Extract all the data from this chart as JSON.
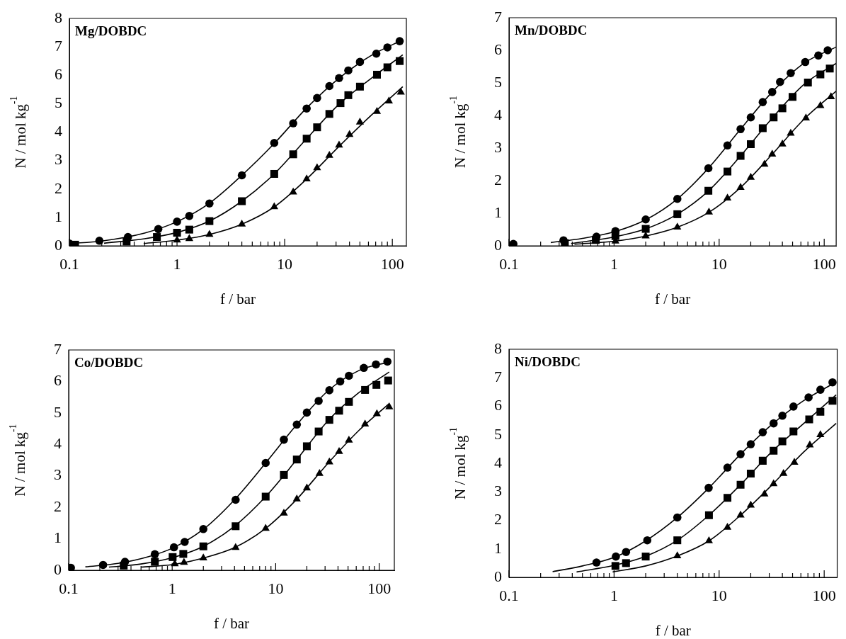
{
  "chart_data": [
    {
      "type": "scatter",
      "title": "Mg/DOBDC",
      "xlabel": "f / bar",
      "ylabel": "N / mol kg$^{-1}$",
      "log": "x",
      "grid": false,
      "xlim": [
        0.1,
        135
      ],
      "xticks": [
        0.1,
        {
          "value": 0.2,
          "label": null
        },
        {
          "value": 0.3,
          "label": null
        },
        {
          "value": 0.4,
          "label": null
        },
        {
          "value": 0.5,
          "label": null
        },
        {
          "value": 0.6,
          "label": null
        },
        {
          "value": 0.7,
          "label": null
        },
        {
          "value": 0.8,
          "label": null
        },
        {
          "value": 0.9,
          "label": null
        },
        1,
        {
          "value": 2,
          "label": null
        },
        {
          "value": 3,
          "label": null
        },
        {
          "value": 4,
          "label": null
        },
        {
          "value": 5,
          "label": null
        },
        {
          "value": 6,
          "label": null
        },
        {
          "value": 7,
          "label": null
        },
        {
          "value": 8,
          "label": null
        },
        {
          "value": 9,
          "label": null
        },
        10,
        {
          "value": 20,
          "label": null
        },
        {
          "value": 30,
          "label": null
        },
        {
          "value": 40,
          "label": null
        },
        {
          "value": 50,
          "label": null
        },
        {
          "value": 60,
          "label": null
        },
        {
          "value": 70,
          "label": null
        },
        {
          "value": 80,
          "label": null
        },
        {
          "value": 90,
          "label": null
        },
        100
      ],
      "ylim": [
        0,
        8
      ],
      "yticks": [
        0,
        1,
        2,
        3,
        4,
        5,
        6,
        7,
        8
      ],
      "series": [
        {
          "type": "scatter",
          "marker": "circle",
          "color": "#000000",
          "x": [
            0.1,
            0.19,
            0.35,
            0.67,
            1.0,
            1.3,
            2.0,
            4.0,
            8,
            12,
            16,
            20,
            26,
            32,
            39,
            50,
            71,
            90,
            117
          ],
          "values": [
            0.08,
            0.18,
            0.31,
            0.59,
            0.85,
            1.05,
            1.49,
            2.48,
            3.62,
            4.31,
            4.83,
            5.2,
            5.62,
            5.9,
            6.17,
            6.47,
            6.76,
            6.98,
            7.2
          ]
        },
        {
          "type": "scatter",
          "marker": "square",
          "color": "#000000",
          "x": [
            0.113,
            0.34,
            0.65,
            1.0,
            1.3,
            2.0,
            4,
            8,
            12,
            16,
            20,
            26,
            33,
            39,
            50,
            72,
            90,
            117
          ],
          "values": [
            0.04,
            0.15,
            0.31,
            0.46,
            0.57,
            0.87,
            1.57,
            2.53,
            3.22,
            3.77,
            4.17,
            4.64,
            5.02,
            5.3,
            5.6,
            6.02,
            6.28,
            6.5
          ]
        },
        {
          "type": "scatter",
          "marker": "triangle",
          "color": "#000000",
          "x": [
            1.0,
            1.3,
            2,
            4,
            8,
            12,
            16,
            20,
            26,
            32,
            40,
            50,
            72,
            93,
            120
          ],
          "values": [
            0.2,
            0.25,
            0.4,
            0.76,
            1.37,
            1.89,
            2.35,
            2.74,
            3.18,
            3.54,
            3.91,
            4.35,
            4.72,
            5.09,
            5.4
          ]
        },
        {
          "type": "line",
          "marker": "none",
          "color": "#000000",
          "x": [
            0.1,
            0.2,
            0.5,
            1,
            2,
            4,
            8,
            16,
            32,
            64,
            125
          ],
          "values": [
            0.08,
            0.17,
            0.45,
            0.85,
            1.5,
            2.48,
            3.6,
            4.85,
            5.9,
            6.7,
            7.25
          ]
        },
        {
          "type": "line",
          "marker": "none",
          "color": "#000000",
          "x": [
            0.21,
            0.5,
            1,
            2,
            4,
            8,
            16,
            32,
            64,
            125
          ],
          "values": [
            0.09,
            0.25,
            0.47,
            0.87,
            1.57,
            2.53,
            3.77,
            4.98,
            5.9,
            6.72
          ]
        },
        {
          "type": "line",
          "marker": "none",
          "color": "#000000",
          "x": [
            0.49,
            1,
            2,
            4,
            8,
            16,
            32,
            64,
            125
          ],
          "values": [
            0.08,
            0.2,
            0.4,
            0.76,
            1.37,
            2.35,
            3.5,
            4.6,
            5.6
          ]
        }
      ]
    },
    {
      "type": "scatter",
      "title": "Mn/DOBDC",
      "xlabel": "f / bar",
      "ylabel": "N / mol kg$^{-1}$",
      "log": "x",
      "grid": false,
      "xlim": [
        0.1,
        130
      ],
      "xticks": [
        0.1,
        {
          "value": 0.2,
          "label": null
        },
        {
          "value": 0.3,
          "label": null
        },
        {
          "value": 0.4,
          "label": null
        },
        {
          "value": 0.5,
          "label": null
        },
        {
          "value": 0.6,
          "label": null
        },
        {
          "value": 0.7,
          "label": null
        },
        {
          "value": 0.8,
          "label": null
        },
        {
          "value": 0.9,
          "label": null
        },
        1,
        {
          "value": 2,
          "label": null
        },
        {
          "value": 3,
          "label": null
        },
        {
          "value": 4,
          "label": null
        },
        {
          "value": 5,
          "label": null
        },
        {
          "value": 6,
          "label": null
        },
        {
          "value": 7,
          "label": null
        },
        {
          "value": 8,
          "label": null
        },
        {
          "value": 9,
          "label": null
        },
        10,
        {
          "value": 20,
          "label": null
        },
        {
          "value": 30,
          "label": null
        },
        {
          "value": 40,
          "label": null
        },
        {
          "value": 50,
          "label": null
        },
        {
          "value": 60,
          "label": null
        },
        {
          "value": 70,
          "label": null
        },
        {
          "value": 80,
          "label": null
        },
        {
          "value": 90,
          "label": null
        },
        100
      ],
      "ylim": [
        0,
        7
      ],
      "yticks": [
        0,
        1,
        2,
        3,
        4,
        5,
        6,
        7
      ],
      "series": [
        {
          "type": "scatter",
          "marker": "circle",
          "color": "#000000",
          "x": [
            0.11,
            0.33,
            0.68,
            1.03,
            2.0,
            4.0,
            7.9,
            12,
            16,
            20,
            26,
            32,
            38,
            48,
            66,
            88,
            108
          ],
          "values": [
            0.06,
            0.17,
            0.28,
            0.45,
            0.81,
            1.44,
            2.38,
            3.08,
            3.58,
            3.94,
            4.41,
            4.72,
            5.03,
            5.3,
            5.64,
            5.84,
            6.0
          ]
        },
        {
          "type": "scatter",
          "marker": "square",
          "color": "#000000",
          "x": [
            0.34,
            0.67,
            1.03,
            2,
            4,
            7.9,
            12,
            16,
            20,
            26,
            33,
            40,
            50,
            70,
            92,
            113
          ],
          "values": [
            0.08,
            0.18,
            0.3,
            0.52,
            0.97,
            1.69,
            2.28,
            2.76,
            3.12,
            3.61,
            3.94,
            4.22,
            4.57,
            5.01,
            5.26,
            5.44
          ]
        },
        {
          "type": "scatter",
          "marker": "triangle",
          "color": "#000000",
          "x": [
            1.03,
            2,
            4,
            8,
            12,
            16,
            20,
            27,
            32,
            40,
            48,
            67,
            92,
            116
          ],
          "values": [
            0.14,
            0.3,
            0.57,
            1.03,
            1.46,
            1.79,
            2.1,
            2.5,
            2.81,
            3.12,
            3.45,
            3.92,
            4.3,
            4.57
          ]
        },
        {
          "type": "line",
          "marker": "none",
          "color": "#000000",
          "x": [
            0.25,
            0.5,
            1,
            2,
            4,
            8,
            16,
            32,
            64,
            130
          ],
          "values": [
            0.1,
            0.23,
            0.43,
            0.8,
            1.44,
            2.4,
            3.58,
            4.72,
            5.6,
            6.1
          ]
        },
        {
          "type": "line",
          "marker": "none",
          "color": "#000000",
          "x": [
            0.39,
            1,
            2,
            4,
            8,
            16,
            32,
            64,
            130
          ],
          "values": [
            0.07,
            0.27,
            0.52,
            0.97,
            1.7,
            2.76,
            3.92,
            4.95,
            5.6
          ]
        },
        {
          "type": "line",
          "marker": "none",
          "color": "#000000",
          "x": [
            0.42,
            1,
            2,
            4,
            8,
            16,
            32,
            64,
            130
          ],
          "values": [
            0.05,
            0.14,
            0.3,
            0.57,
            1.03,
            1.79,
            2.81,
            3.88,
            4.75
          ]
        }
      ]
    },
    {
      "type": "scatter",
      "title": "Co/DOBDC",
      "xlabel": "f / bar",
      "ylabel": "N / mol kg$^{-1}$",
      "log": "x",
      "grid": false,
      "xlim": [
        0.1,
        140
      ],
      "xticks": [
        0.1,
        {
          "value": 0.2,
          "label": null
        },
        {
          "value": 0.3,
          "label": null
        },
        {
          "value": 0.4,
          "label": null
        },
        {
          "value": 0.5,
          "label": null
        },
        {
          "value": 0.6,
          "label": null
        },
        {
          "value": 0.7,
          "label": null
        },
        {
          "value": 0.8,
          "label": null
        },
        {
          "value": 0.9,
          "label": null
        },
        1,
        {
          "value": 2,
          "label": null
        },
        {
          "value": 3,
          "label": null
        },
        {
          "value": 4,
          "label": null
        },
        {
          "value": 5,
          "label": null
        },
        {
          "value": 6,
          "label": null
        },
        {
          "value": 7,
          "label": null
        },
        {
          "value": 8,
          "label": null
        },
        {
          "value": 9,
          "label": null
        },
        10,
        {
          "value": 20,
          "label": null
        },
        {
          "value": 30,
          "label": null
        },
        {
          "value": 40,
          "label": null
        },
        {
          "value": 50,
          "label": null
        },
        {
          "value": 60,
          "label": null
        },
        {
          "value": 70,
          "label": null
        },
        {
          "value": 80,
          "label": null
        },
        {
          "value": 90,
          "label": null
        },
        100
      ],
      "ylim": [
        0,
        7
      ],
      "yticks": [
        0,
        1,
        2,
        3,
        4,
        5,
        6,
        7
      ],
      "series": [
        {
          "type": "scatter",
          "marker": "circle",
          "color": "#000000",
          "x": [
            0.105,
            0.215,
            0.35,
            0.68,
            1.04,
            1.32,
            2.0,
            4.1,
            8,
            12,
            16,
            20,
            26,
            33,
            42,
            51,
            71,
            93,
            120
          ],
          "values": [
            0.08,
            0.17,
            0.27,
            0.51,
            0.73,
            0.9,
            1.31,
            2.24,
            3.41,
            4.15,
            4.63,
            5.01,
            5.38,
            5.72,
            6.0,
            6.18,
            6.43,
            6.54,
            6.63
          ]
        },
        {
          "type": "scatter",
          "marker": "square",
          "color": "#000000",
          "x": [
            0.34,
            0.68,
            1.01,
            1.28,
            2,
            4.1,
            8,
            12,
            16,
            20,
            26,
            33,
            41,
            51,
            73,
            94,
            122
          ],
          "values": [
            0.15,
            0.27,
            0.42,
            0.52,
            0.76,
            1.4,
            2.34,
            3.03,
            3.52,
            3.94,
            4.41,
            4.78,
            5.07,
            5.35,
            5.73,
            5.89,
            6.03
          ]
        },
        {
          "type": "scatter",
          "marker": "triangle",
          "color": "#000000",
          "x": [
            1.06,
            1.3,
            2,
            4.1,
            8,
            12,
            16,
            20,
            26.5,
            33,
            41,
            51,
            73,
            95,
            125
          ],
          "values": [
            0.2,
            0.25,
            0.39,
            0.72,
            1.33,
            1.81,
            2.26,
            2.61,
            3.07,
            3.44,
            3.77,
            4.13,
            4.64,
            4.97,
            5.19
          ]
        },
        {
          "type": "line",
          "marker": "none",
          "color": "#000000",
          "x": [
            0.145,
            0.3,
            0.6,
            1,
            2,
            4,
            8,
            16,
            32,
            64,
            125
          ],
          "values": [
            0.11,
            0.22,
            0.44,
            0.7,
            1.3,
            2.24,
            3.41,
            4.63,
            5.7,
            6.35,
            6.62
          ]
        },
        {
          "type": "line",
          "marker": "none",
          "color": "#000000",
          "x": [
            0.245,
            0.5,
            1,
            2,
            4,
            8,
            16,
            32,
            64,
            125
          ],
          "values": [
            0.1,
            0.2,
            0.4,
            0.76,
            1.4,
            2.34,
            3.52,
            4.75,
            5.65,
            6.3
          ]
        },
        {
          "type": "line",
          "marker": "none",
          "color": "#000000",
          "x": [
            0.5,
            1,
            2,
            4,
            8,
            16,
            32,
            64,
            125
          ],
          "values": [
            0.1,
            0.18,
            0.39,
            0.72,
            1.33,
            2.26,
            3.4,
            4.45,
            5.3
          ]
        }
      ]
    },
    {
      "type": "scatter",
      "title": "Ni/DOBDC",
      "xlabel": "f / bar",
      "ylabel": "N / mol kg$^{-1}$",
      "log": "x",
      "grid": false,
      "xlim": [
        0.1,
        133
      ],
      "xticks": [
        0.1,
        {
          "value": 0.2,
          "label": null
        },
        {
          "value": 0.3,
          "label": null
        },
        {
          "value": 0.4,
          "label": null
        },
        {
          "value": 0.5,
          "label": null
        },
        {
          "value": 0.6,
          "label": null
        },
        {
          "value": 0.7,
          "label": null
        },
        {
          "value": 0.8,
          "label": null
        },
        {
          "value": 0.9,
          "label": null
        },
        1,
        {
          "value": 2,
          "label": null
        },
        {
          "value": 3,
          "label": null
        },
        {
          "value": 4,
          "label": null
        },
        {
          "value": 5,
          "label": null
        },
        {
          "value": 6,
          "label": null
        },
        {
          "value": 7,
          "label": null
        },
        {
          "value": 8,
          "label": null
        },
        {
          "value": 9,
          "label": null
        },
        10,
        {
          "value": 20,
          "label": null
        },
        {
          "value": 30,
          "label": null
        },
        {
          "value": 40,
          "label": null
        },
        {
          "value": 50,
          "label": null
        },
        {
          "value": 60,
          "label": null
        },
        {
          "value": 70,
          "label": null
        },
        {
          "value": 80,
          "label": null
        },
        {
          "value": 90,
          "label": null
        },
        100
      ],
      "ylim": [
        0,
        8
      ],
      "yticks": [
        0,
        1,
        2,
        3,
        4,
        5,
        6,
        7,
        8
      ],
      "series": [
        {
          "type": "scatter",
          "marker": "circle",
          "color": "#000000",
          "x": [
            0.68,
            1.04,
            1.3,
            2.07,
            4.0,
            7.95,
            12,
            16,
            20,
            26,
            33,
            40,
            51,
            71,
            92,
            120
          ],
          "values": [
            0.52,
            0.73,
            0.89,
            1.3,
            2.1,
            3.14,
            3.85,
            4.32,
            4.67,
            5.09,
            5.4,
            5.67,
            5.99,
            6.31,
            6.58,
            6.84
          ]
        },
        {
          "type": "scatter",
          "marker": "square",
          "color": "#000000",
          "x": [
            1.03,
            1.3,
            2,
            4,
            8,
            12,
            16,
            20,
            26,
            33,
            40,
            51,
            72,
            92,
            120
          ],
          "values": [
            0.4,
            0.5,
            0.73,
            1.3,
            2.18,
            2.79,
            3.25,
            3.64,
            4.09,
            4.44,
            4.77,
            5.12,
            5.54,
            5.81,
            6.19
          ]
        },
        {
          "type": "scatter",
          "marker": "triangle",
          "color": "#000000",
          "x": [
            4,
            8,
            12,
            16,
            20,
            27,
            33,
            41,
            52,
            73,
            92
          ],
          "values": [
            0.75,
            1.28,
            1.75,
            2.18,
            2.53,
            2.92,
            3.28,
            3.64,
            4.03,
            4.64,
            5.0
          ]
        },
        {
          "type": "line",
          "marker": "none",
          "color": "#000000",
          "x": [
            0.26,
            0.5,
            1,
            2,
            4,
            8,
            16,
            32,
            64,
            130
          ],
          "values": [
            0.2,
            0.4,
            0.7,
            1.28,
            2.1,
            3.14,
            4.32,
            5.37,
            6.2,
            6.85
          ]
        },
        {
          "type": "line",
          "marker": "none",
          "color": "#000000",
          "x": [
            0.44,
            1,
            2,
            4,
            8,
            16,
            32,
            64,
            130
          ],
          "values": [
            0.19,
            0.42,
            0.74,
            1.3,
            2.18,
            3.25,
            4.42,
            5.4,
            6.4
          ]
        },
        {
          "type": "line",
          "marker": "none",
          "color": "#000000",
          "x": [
            0.97,
            2,
            4,
            8,
            16,
            32,
            64,
            130
          ],
          "values": [
            0.19,
            0.4,
            0.75,
            1.28,
            2.18,
            3.25,
            4.4,
            5.4
          ]
        }
      ]
    }
  ]
}
